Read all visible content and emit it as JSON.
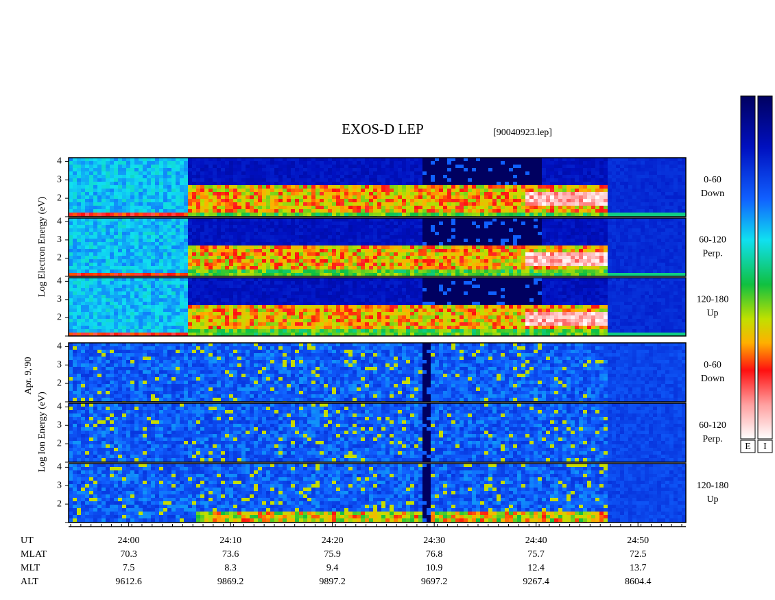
{
  "chart_data": {
    "type": "spectrogram",
    "title": "EXOS-D LEP",
    "subtitle": "[90040923.lep]",
    "date_label": "Apr. 9,'90",
    "groups": [
      {
        "ylabel": "Log  Electron  Energy  (eV)"
      },
      {
        "ylabel": "Log  Ion  Energy  (eV)"
      }
    ],
    "panels": [
      {
        "group": 0,
        "label": [
          "0-60",
          "Down"
        ]
      },
      {
        "group": 0,
        "label": [
          "60-120",
          "Perp."
        ]
      },
      {
        "group": 0,
        "label": [
          "120-180",
          "Up"
        ]
      },
      {
        "group": 1,
        "label": [
          "0-60",
          "Down"
        ]
      },
      {
        "group": 1,
        "label": [
          "60-120",
          "Perp."
        ]
      },
      {
        "group": 1,
        "label": [
          "120-180",
          "Up"
        ]
      }
    ],
    "ylim": [
      1,
      4.2
    ],
    "yticks": [
      2,
      3,
      4
    ],
    "x_label": "UT",
    "xlim": [
      -5.9,
      54.7
    ],
    "xticks": [
      {
        "value": 0,
        "label": "24:00"
      },
      {
        "value": 10,
        "label": "24:10"
      },
      {
        "value": 20,
        "label": "24:20"
      },
      {
        "value": 30,
        "label": "24:30"
      },
      {
        "value": 40,
        "label": "24:40"
      },
      {
        "value": 50,
        "label": "24:50"
      }
    ],
    "rows": [
      {
        "name": "MLAT",
        "values": [
          70.3,
          73.6,
          75.9,
          76.8,
          75.7,
          72.5
        ]
      },
      {
        "name": "MLT",
        "values": [
          7.5,
          8.3,
          9.4,
          10.9,
          12.4,
          13.7
        ]
      },
      {
        "name": "ALT",
        "values": [
          9612.6,
          9869.2,
          9897.2,
          9697.2,
          9267.4,
          8604.4
        ]
      }
    ],
    "colorbar_labels": [
      "E",
      "I"
    ]
  }
}
